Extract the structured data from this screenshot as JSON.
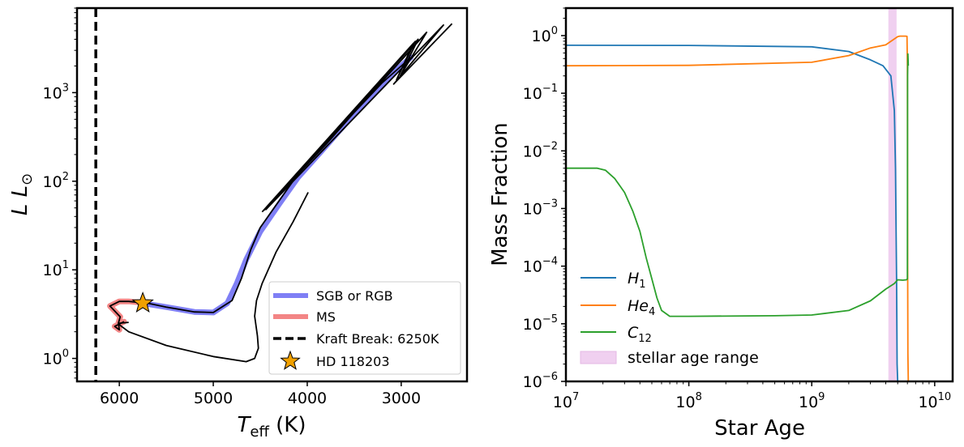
{
  "chart_data": [
    {
      "type": "line",
      "title": "",
      "xlabel": "T_eff (K)",
      "xlabel_parts": {
        "main": "T",
        "sub": "eff",
        "unit": " (K)"
      },
      "ylabel": "L L☉",
      "ylabel_parts": {
        "main": "L ",
        "var": "L",
        "sub": "⊙"
      },
      "xlim": [
        6450,
        2300
      ],
      "xscale": "linear",
      "xticks": [
        6000,
        5000,
        4000,
        3000
      ],
      "xtick_labels": [
        "6000",
        "5000",
        "4000",
        "3000"
      ],
      "ylim": [
        0.55,
        9000
      ],
      "yscale": "log",
      "yticks": [
        {
          "value": 1,
          "base": "10",
          "exp": "0"
        },
        {
          "value": 10,
          "base": "10",
          "exp": "1"
        },
        {
          "value": 100,
          "base": "10",
          "exp": "2"
        },
        {
          "value": 1000,
          "base": "10",
          "exp": "3"
        }
      ],
      "legend_position": "lower-right",
      "legend": [
        {
          "label": "SGB or RGB",
          "color": "#7f7ff5",
          "style": "thick-line"
        },
        {
          "label": "MS",
          "color": "#f38585",
          "style": "thick-line"
        },
        {
          "label": "Kraft Break: 6250K",
          "color": "#000000",
          "style": "dashed"
        },
        {
          "label": "HD 118203",
          "color": "#f0a000",
          "style": "star"
        }
      ],
      "series": [
        {
          "name": "evolutionary track",
          "color": "#000000",
          "x": [
            5950,
            6050,
            6000,
            6010,
            5990,
            6100,
            6000,
            5900,
            5800,
            5700,
            5500,
            5200,
            5000,
            4800,
            4700,
            4600,
            4500,
            4300,
            4100,
            3800,
            3500,
            3200,
            3000,
            2900
          ],
          "y": [
            2.6,
            2.3,
            2.1,
            2.5,
            2.95,
            3.9,
            4.4,
            4.4,
            4.3,
            4.2,
            3.8,
            3.35,
            3.3,
            4.5,
            8,
            17,
            30,
            60,
            120,
            260,
            600,
            1300,
            2000,
            2500
          ]
        },
        {
          "name": "RGB zigzags",
          "color": "#000000",
          "x": [
            4480,
            2870,
            3050,
            2850,
            4460,
            2820,
            3010,
            2730,
            4440,
            2550,
            3080,
            2460
          ],
          "y": [
            45,
            3600,
            1400,
            3800,
            47,
            4000,
            1550,
            4800,
            48,
            5800,
            1250,
            6000
          ]
        },
        {
          "name": "pre-MS track",
          "color": "#000000",
          "x": [
            3990,
            4150,
            4330,
            4480,
            4540,
            4560,
            4530,
            4520,
            4560,
            4650,
            5000,
            5500,
            5900,
            6000,
            6000,
            5900
          ],
          "y": [
            75,
            35,
            16,
            7,
            4.5,
            3,
            1.8,
            1.3,
            1.0,
            0.92,
            1.05,
            1.4,
            2.0,
            2.4,
            2.5,
            2.55
          ]
        },
        {
          "name": "SGB or RGB",
          "color": "#7f7ff5",
          "x": [
            5750,
            5500,
            5200,
            5000,
            4850,
            4750,
            4650,
            4500,
            4300,
            4100,
            3800,
            3500,
            3200,
            3000,
            2900
          ],
          "y": [
            4.2,
            3.8,
            3.35,
            3.3,
            4.2,
            7,
            13,
            27,
            55,
            110,
            250,
            580,
            1250,
            2000,
            2500
          ]
        },
        {
          "name": "MS",
          "color": "#f38585",
          "x": [
            5950,
            6050,
            6000,
            6010,
            5990,
            6100,
            6000,
            5900,
            5800
          ],
          "y": [
            2.6,
            2.3,
            2.1,
            2.5,
            2.95,
            3.9,
            4.4,
            4.4,
            4.3
          ]
        },
        {
          "name": "Kraft Break",
          "color": "#000000",
          "value": 6250
        },
        {
          "name": "HD 118203",
          "color": "#f0a000",
          "x": [
            5750
          ],
          "y": [
            4.2
          ]
        }
      ]
    },
    {
      "type": "line",
      "title": "",
      "xlabel": "Star Age",
      "ylabel": "Mass Fraction",
      "xlim": [
        10000000,
        14000000000
      ],
      "xscale": "log",
      "xticks": [
        {
          "value": 10000000,
          "base": "10",
          "exp": "7"
        },
        {
          "value": 100000000,
          "base": "10",
          "exp": "8"
        },
        {
          "value": 1000000000,
          "base": "10",
          "exp": "9"
        },
        {
          "value": 10000000000,
          "base": "10",
          "exp": "10"
        }
      ],
      "ylim": [
        1e-06,
        3
      ],
      "yscale": "log",
      "yticks": [
        {
          "value": 1,
          "base": "10",
          "exp": "0"
        },
        {
          "value": 0.1,
          "base": "10",
          "exp": "−1"
        },
        {
          "value": 0.01,
          "base": "10",
          "exp": "−2"
        },
        {
          "value": 0.001,
          "base": "10",
          "exp": "−3"
        },
        {
          "value": 0.0001,
          "base": "10",
          "exp": "−4"
        },
        {
          "value": 1e-05,
          "base": "10",
          "exp": "−5"
        },
        {
          "value": 1e-06,
          "base": "10",
          "exp": "−6"
        }
      ],
      "legend_position": "lower-left",
      "legend": [
        {
          "label": "H1",
          "name": "H",
          "sub": "1",
          "color": "#1f77b4",
          "style": "line"
        },
        {
          "label": "He4",
          "name": "He",
          "sub": "4",
          "color": "#ff7f0e",
          "style": "line"
        },
        {
          "label": "C12",
          "name": "C",
          "sub": "12",
          "color": "#2ca02c",
          "style": "line"
        },
        {
          "label": "stellar age range",
          "color": "#f0d0f0",
          "style": "patch"
        }
      ],
      "age_range": [
        4200000000,
        4900000000
      ],
      "series": [
        {
          "name": "H1",
          "color": "#1f77b4",
          "x": [
            10000000,
            100000000,
            1000000000,
            2000000000,
            3000000000,
            3800000000,
            4400000000,
            4700000000,
            4800000000,
            4900000000,
            4950000000,
            5000000000
          ],
          "y": [
            0.68,
            0.675,
            0.64,
            0.53,
            0.38,
            0.3,
            0.2,
            0.05,
            0.005,
            5e-05,
            2e-06,
            1e-06
          ]
        },
        {
          "name": "He4",
          "color": "#ff7f0e",
          "x": [
            10000000,
            100000000,
            1000000000,
            2000000000,
            3000000000,
            4000000000,
            5000000000,
            5200000000,
            5800000000,
            5950000000,
            6000000000,
            6030000000,
            6050000000,
            6100000000
          ],
          "y": [
            0.3,
            0.305,
            0.345,
            0.45,
            0.61,
            0.69,
            0.96,
            0.98,
            0.98,
            0.97,
            0.3,
            0.0001,
            3e-06,
            1e-06
          ]
        },
        {
          "name": "C12",
          "color": "#2ca02c",
          "x": [
            10000000,
            18000000,
            21000000,
            25000000,
            30000000,
            35000000,
            40000000,
            45000000,
            50000000,
            55000000,
            60000000,
            70000000,
            100000000,
            500000000,
            1000000000,
            2000000000,
            3000000000,
            4000000000,
            4700000000,
            5000000000,
            5500000000,
            5900000000,
            6000000000,
            6020000000,
            6050000000,
            6100000000
          ],
          "y": [
            0.005,
            0.005,
            0.0046,
            0.0033,
            0.0019,
            0.0009,
            0.0004,
            0.00014,
            6e-05,
            2.8e-05,
            1.7e-05,
            1.35e-05,
            1.35e-05,
            1.38e-05,
            1.42e-05,
            1.7e-05,
            2.5e-05,
            4e-05,
            5e-05,
            5.8e-05,
            5.7e-05,
            5.8e-05,
            6e-05,
            0.2,
            0.48,
            0.3
          ]
        }
      ]
    }
  ]
}
